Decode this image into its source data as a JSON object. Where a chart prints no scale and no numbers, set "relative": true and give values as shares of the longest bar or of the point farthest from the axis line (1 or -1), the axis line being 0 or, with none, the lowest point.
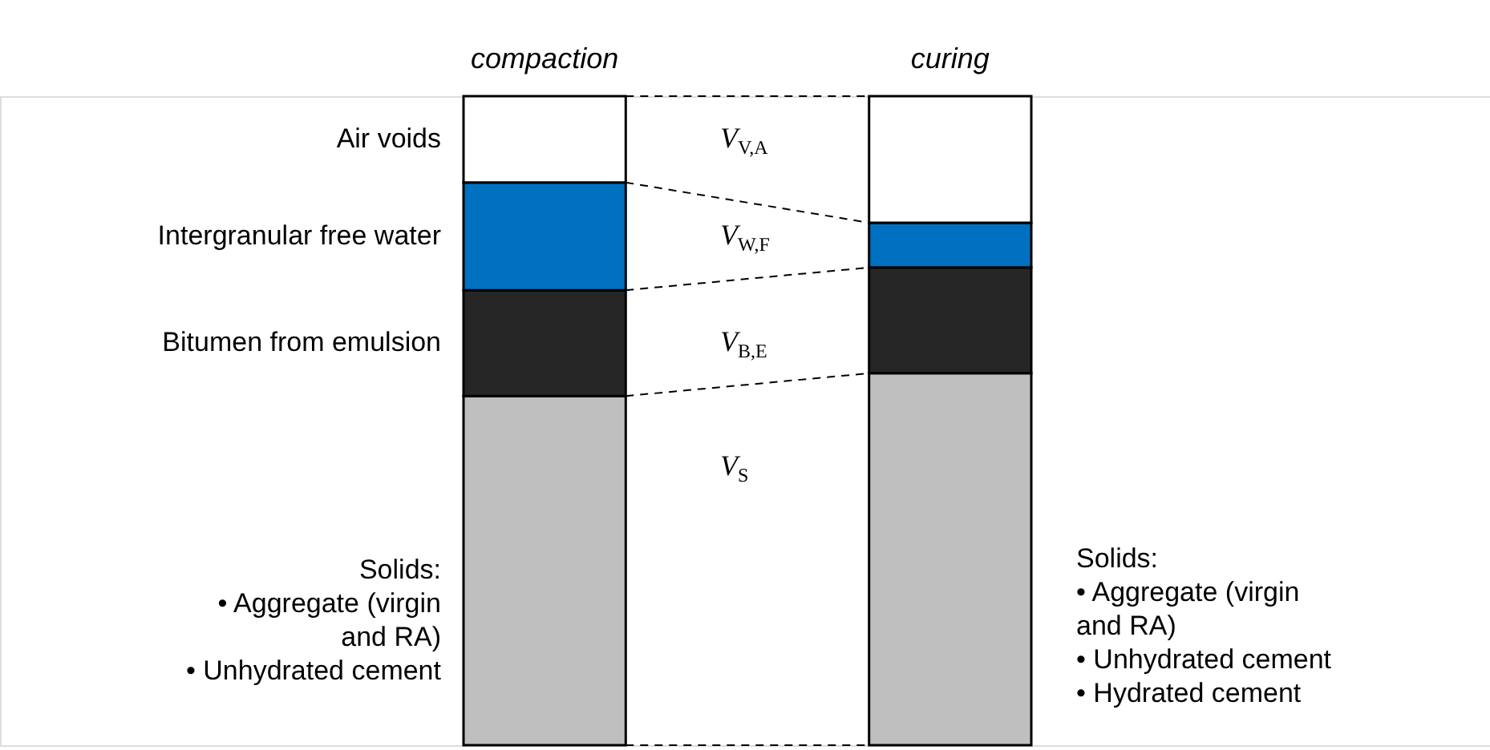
{
  "chart_data": {
    "type": "bar",
    "stacked": true,
    "relative": true,
    "legend": false,
    "categories": [
      "compaction",
      "curing"
    ],
    "series": [
      {
        "name": "Solids:\n• Aggregate (virgin\n  and RA)\n• Unhydrated cement",
        "color": "#bfbfbf",
        "values": [
          0.538,
          0.573
        ]
      },
      {
        "name": "Bitumen from emulsion",
        "color": "#262626",
        "values": [
          0.163,
          0.163
        ]
      },
      {
        "name": "Intergranular free water",
        "color": "#0070c0",
        "values": [
          0.166,
          0.069
        ]
      },
      {
        "name": "Air voids",
        "color": "#ffffff",
        "values": [
          0.133,
          0.195
        ]
      }
    ],
    "annotations": [
      "V$_{V,A}$",
      "V$_{W,F}$",
      "V$_{B,E}$",
      "V$_{S}$",
      "Solids:\n• Aggregate (virgin\n  and RA)\n• Unhydrated cement\n• Hydrated cement"
    ]
  }
}
